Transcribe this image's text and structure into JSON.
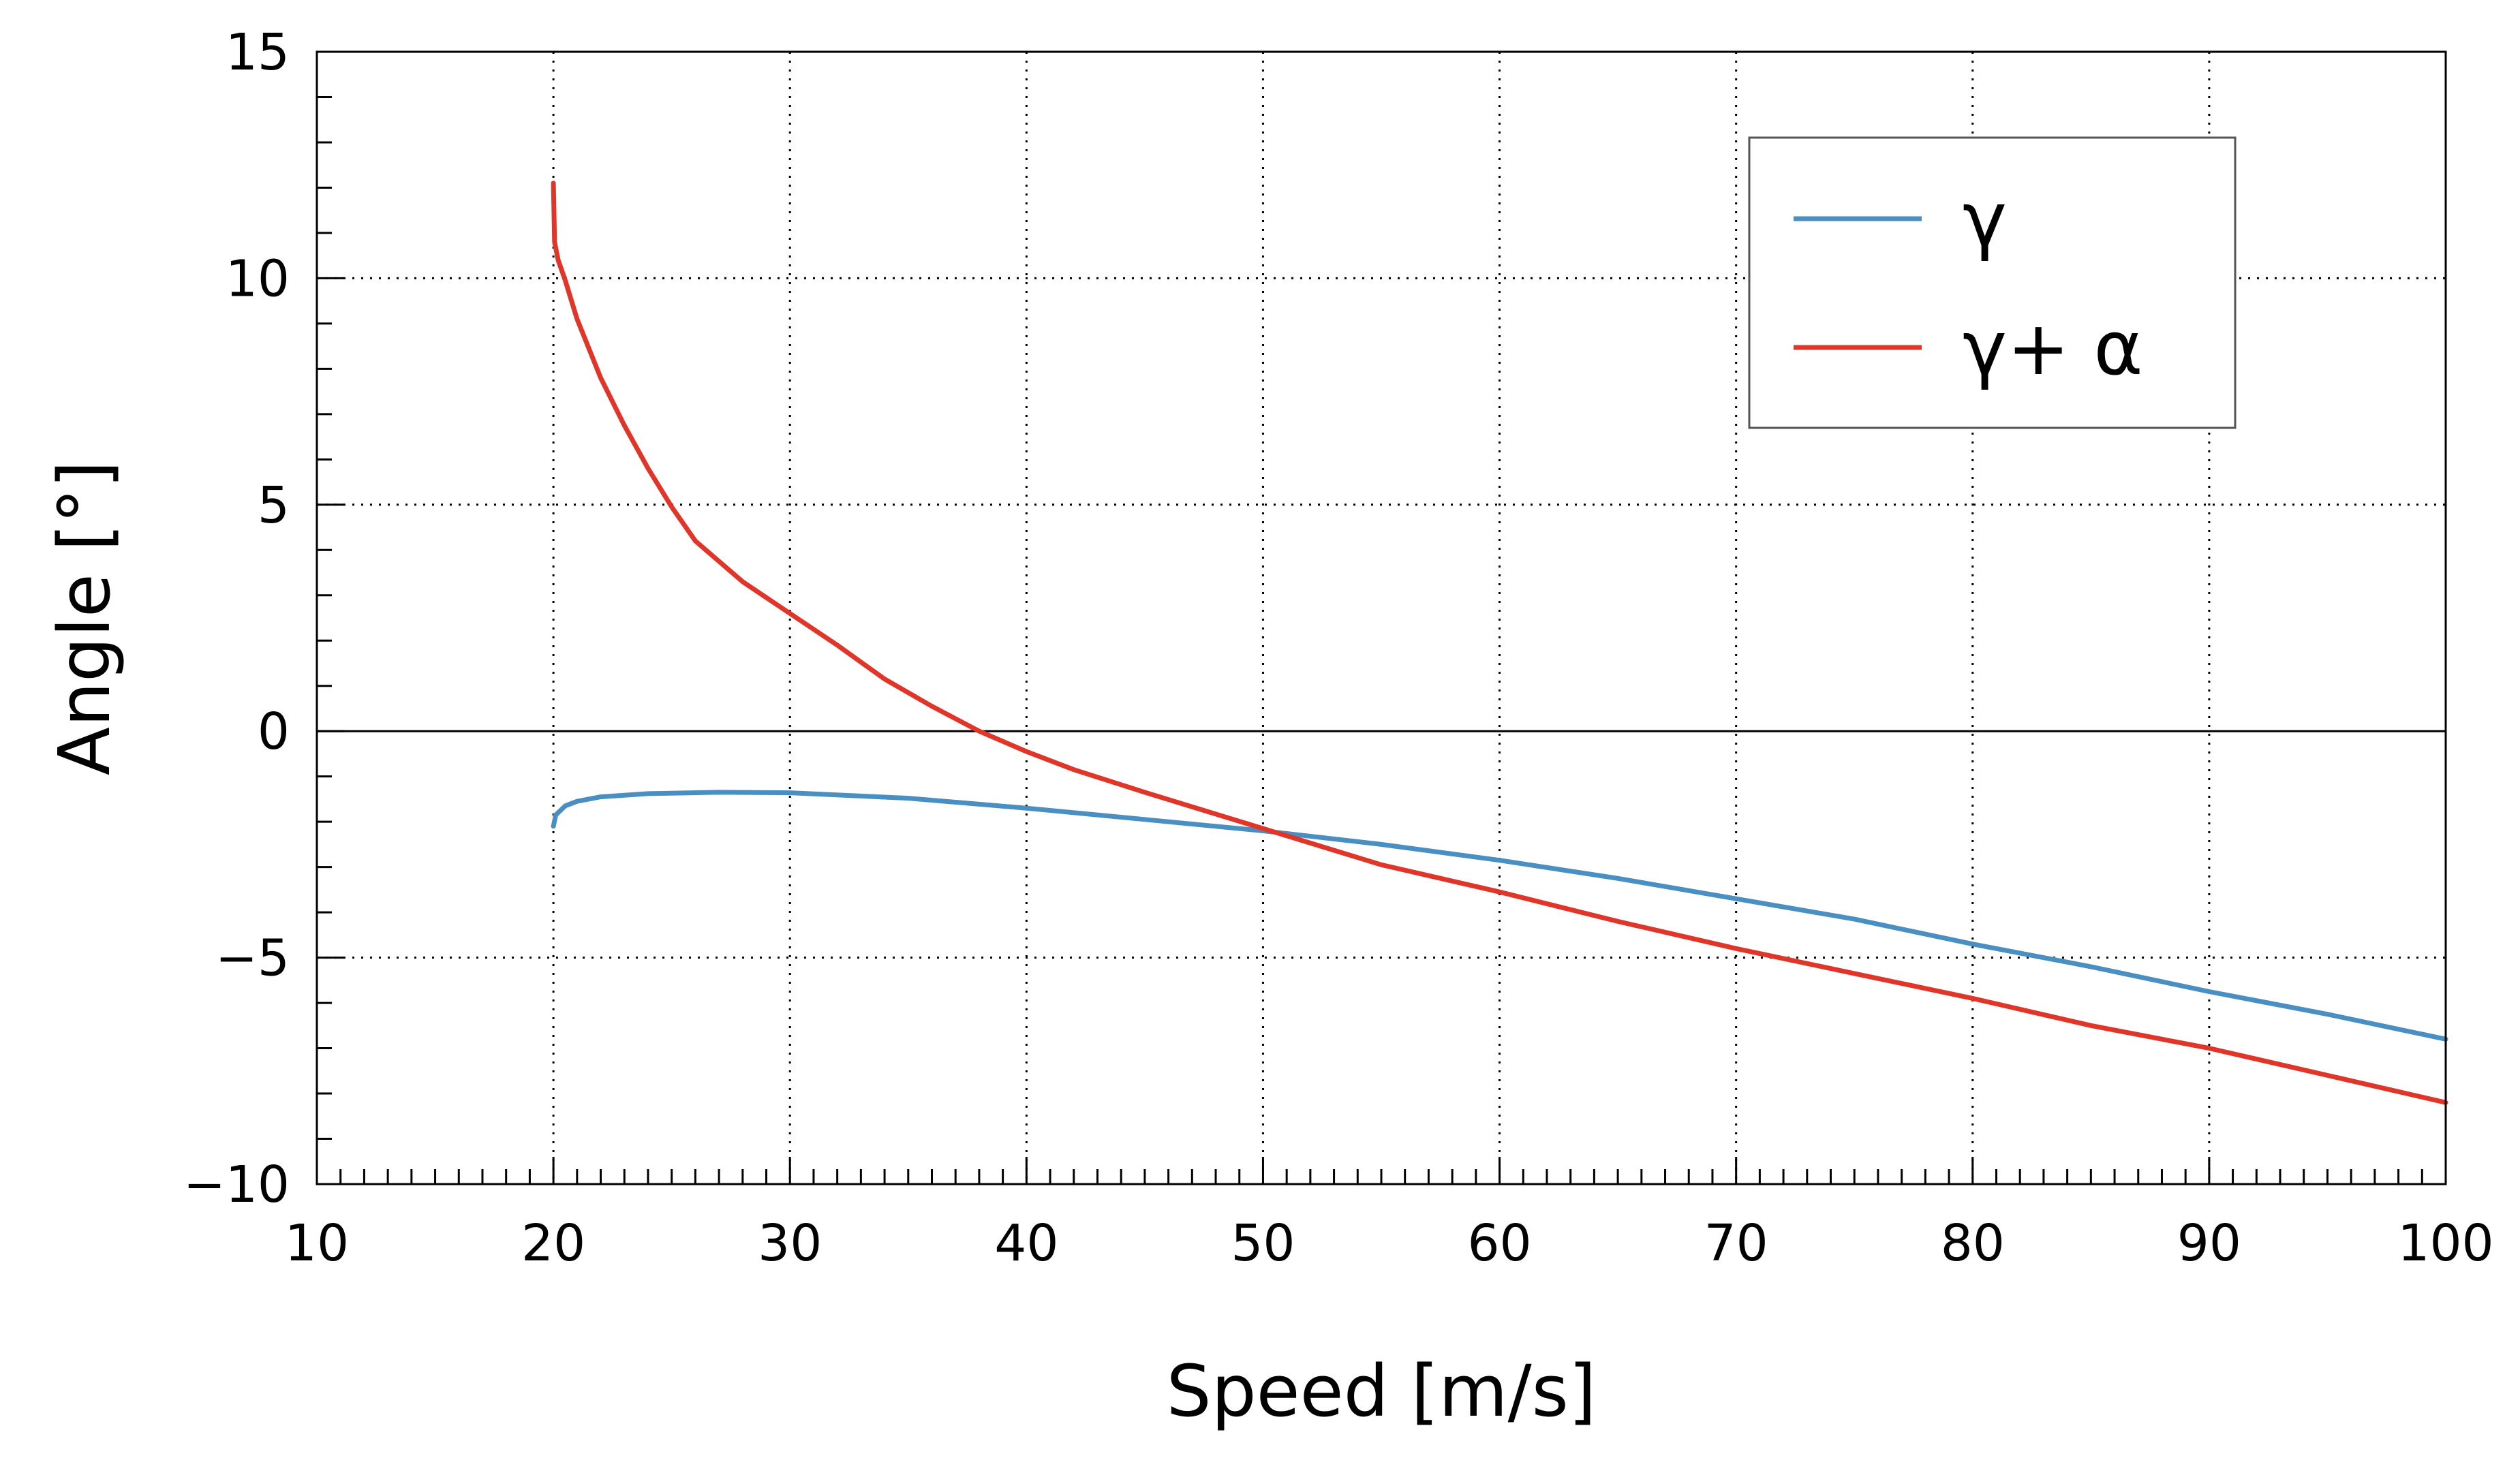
{
  "chart_data": {
    "type": "line",
    "title": "",
    "xlabel": "Speed [m/s]",
    "ylabel": "Angle [°]",
    "xlim": [
      10,
      100
    ],
    "ylim": [
      -10,
      15
    ],
    "x_major_ticks": [
      10,
      20,
      30,
      40,
      50,
      60,
      70,
      80,
      90,
      100
    ],
    "x_tick_labels": [
      "10",
      "20",
      "30",
      "40",
      "50",
      "60",
      "70",
      "80",
      "90",
      "100"
    ],
    "y_major_ticks": [
      -10,
      -5,
      0,
      5,
      10,
      15
    ],
    "y_tick_labels": [
      "−10",
      "−5",
      "0",
      "5",
      "10",
      "15"
    ],
    "x_minor_step": 1,
    "y_minor_step": 1,
    "grid": true,
    "zero_line": true,
    "legend_position": "top-right",
    "series": [
      {
        "name": "γ",
        "color": "#4a8fc2",
        "x": [
          20.0,
          20.1,
          20.5,
          21,
          22,
          24,
          27,
          30,
          35,
          40,
          45,
          50,
          55,
          60,
          65,
          70,
          75,
          80,
          85,
          90,
          95,
          100
        ],
        "values": [
          -2.1,
          -1.85,
          -1.65,
          -1.55,
          -1.45,
          -1.38,
          -1.35,
          -1.36,
          -1.48,
          -1.7,
          -1.95,
          -2.2,
          -2.5,
          -2.85,
          -3.25,
          -3.7,
          -4.15,
          -4.7,
          -5.2,
          -5.75,
          -6.25,
          -6.8
        ]
      },
      {
        "name": "γ+ α",
        "color": "#e0362a",
        "x": [
          20.0,
          20.05,
          20.2,
          20.5,
          21,
          22,
          23,
          24,
          25,
          26,
          28,
          30,
          32,
          34,
          36,
          38,
          40,
          42,
          45,
          50,
          55,
          60,
          65,
          70,
          75,
          80,
          85,
          90,
          95,
          100
        ],
        "values": [
          12.1,
          10.8,
          10.4,
          9.95,
          9.1,
          7.8,
          6.75,
          5.8,
          4.95,
          4.2,
          3.3,
          2.6,
          1.9,
          1.15,
          0.55,
          0.0,
          -0.45,
          -0.85,
          -1.35,
          -2.15,
          -2.95,
          -3.55,
          -4.2,
          -4.8,
          -5.35,
          -5.9,
          -6.5,
          -7.0,
          -7.6,
          -8.2
        ]
      }
    ]
  }
}
